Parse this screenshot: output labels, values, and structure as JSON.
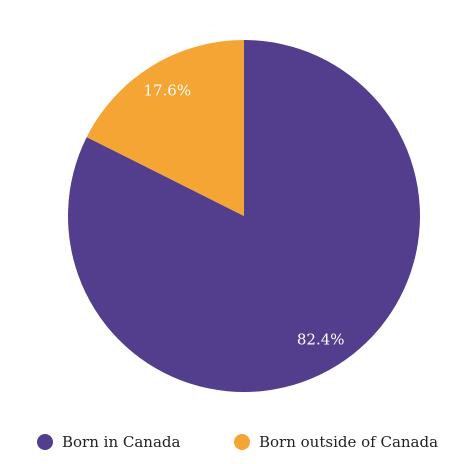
{
  "chart_data": {
    "type": "pie",
    "categories": [
      "Born in Canada",
      "Born outside of Canada"
    ],
    "values": [
      82.4,
      17.6
    ],
    "value_labels": [
      "82.4%",
      "17.6%"
    ],
    "colors": [
      "#523e8c",
      "#f5a533"
    ]
  }
}
